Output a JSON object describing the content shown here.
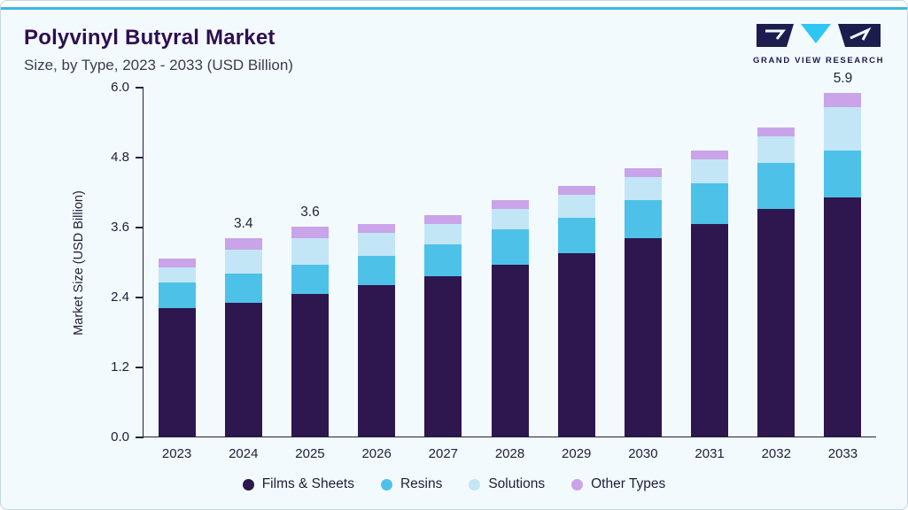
{
  "header": {
    "title": "Polyvinyl Butyral Market",
    "subtitle": "Size, by Type, 2023 - 2033 (USD Billion)",
    "logo_text": "GRAND VIEW RESEARCH"
  },
  "colors": {
    "accent_line": "#3AB7E5",
    "title_text": "#2E0F4F",
    "axis": "#1B2440",
    "card_background": "#F3FAFD"
  },
  "chart_data": {
    "type": "bar",
    "stacked": true,
    "title": "Polyvinyl Butyral Market Size, by Type, 2023 - 2033 (USD Billion)",
    "xlabel": "",
    "ylabel": "Market Size (USD Billion)",
    "ylim": [
      0.0,
      6.0
    ],
    "ytick_labels": [
      "0.0",
      "1.2",
      "2.4",
      "3.6",
      "4.8",
      "6.0"
    ],
    "grid": false,
    "legend_position": "bottom",
    "categories": [
      "2023",
      "2024",
      "2025",
      "2026",
      "2027",
      "2028",
      "2029",
      "2030",
      "2031",
      "2032",
      "2033"
    ],
    "series": [
      {
        "name": "Films & Sheets",
        "color": "#2E164E",
        "values": [
          2.2,
          2.3,
          2.45,
          2.6,
          2.75,
          2.95,
          3.15,
          3.4,
          3.65,
          3.9,
          4.1
        ]
      },
      {
        "name": "Resins",
        "color": "#4EC1E9",
        "values": [
          0.45,
          0.5,
          0.5,
          0.5,
          0.55,
          0.6,
          0.6,
          0.65,
          0.7,
          0.8,
          0.8
        ]
      },
      {
        "name": "Solutions",
        "color": "#C3E6F7",
        "values": [
          0.25,
          0.4,
          0.45,
          0.4,
          0.35,
          0.35,
          0.4,
          0.4,
          0.4,
          0.45,
          0.75
        ]
      },
      {
        "name": "Other Types",
        "color": "#C9A4E9",
        "values": [
          0.15,
          0.2,
          0.2,
          0.15,
          0.15,
          0.15,
          0.15,
          0.15,
          0.15,
          0.15,
          0.25
        ]
      }
    ],
    "totals": [
      3.05,
      3.4,
      3.6,
      3.65,
      3.8,
      4.05,
      4.3,
      4.6,
      4.9,
      5.3,
      5.9
    ],
    "bar_value_labels": {
      "2024": "3.4",
      "2025": "3.6",
      "2033": "5.9"
    }
  }
}
